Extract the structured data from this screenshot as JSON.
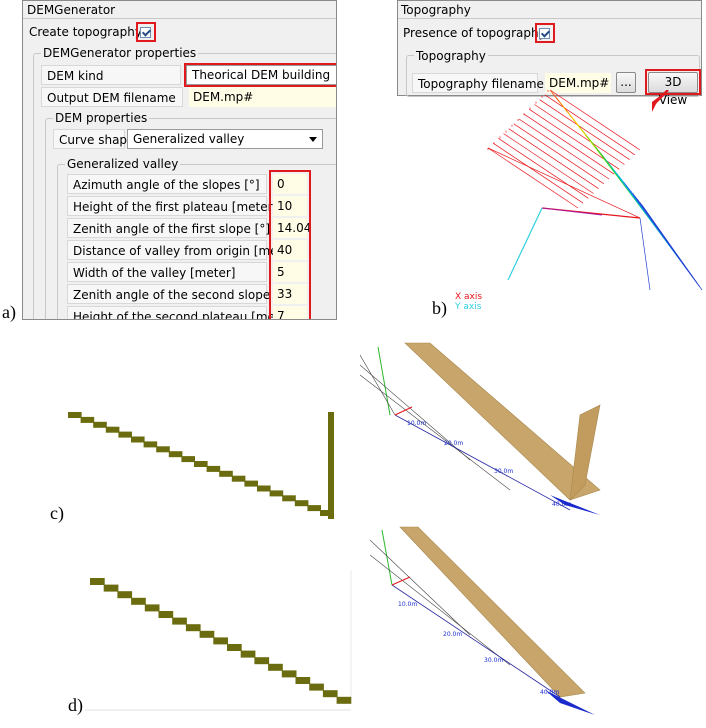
{
  "figure_labels": {
    "a": "a)",
    "b": "b)",
    "c": "c)",
    "d": "d)"
  },
  "panel_a": {
    "window_title": "DEMGenerator",
    "create_topography_label": "Create topography",
    "create_topography_checked": true,
    "properties_group_title": "DEMGenerator properties",
    "dem_kind_label": "DEM kind",
    "dem_kind_value": "Theorical DEM building",
    "output_filename_label": "Output DEM filename",
    "output_filename_value": "DEM.mp#",
    "dem_properties_title": "DEM properties",
    "curve_shape_label": "Curve shape",
    "curve_shape_value": "Generalized valley",
    "valley_group_title": "Generalized valley",
    "params": [
      {
        "label": "Azimuth angle of the slopes [°]",
        "value": "0"
      },
      {
        "label": "Height of the first plateau [meter]",
        "value": "10"
      },
      {
        "label": "Zenith angle of the first slope [°]",
        "value": "14.04"
      },
      {
        "label": "Distance of valley from origin [meter]",
        "value": "40"
      },
      {
        "label": "Width of the valley [meter]",
        "value": "5"
      },
      {
        "label": "Zenith angle of the second slope [°]",
        "value": "33"
      },
      {
        "label": "Height of the second plateau [meter]",
        "value": "7"
      }
    ]
  },
  "panel_b": {
    "window_title": "Topography",
    "presence_label": "Presence of topography",
    "presence_checked": true,
    "group_title": "Topography",
    "filename_label": "Topography filename",
    "filename_value": "DEM.mp#",
    "browse_label": "...",
    "view3d_label": "3D View",
    "legend_x": "X axis",
    "legend_y": "Y axis",
    "colors": {
      "x_axis": "#e8141b",
      "y_axis": "#2fd0e0",
      "highlight": "#e0191f"
    }
  },
  "panel_c": {
    "labels": [
      "40.0m",
      "30.0m",
      "20.0m",
      "10.0m"
    ],
    "profile_color": "#6b6b10",
    "surface_color": "#c8a56a"
  },
  "panel_d": {
    "labels": [
      "40.0m",
      "30.0m",
      "20.0m",
      "10.0m"
    ]
  }
}
